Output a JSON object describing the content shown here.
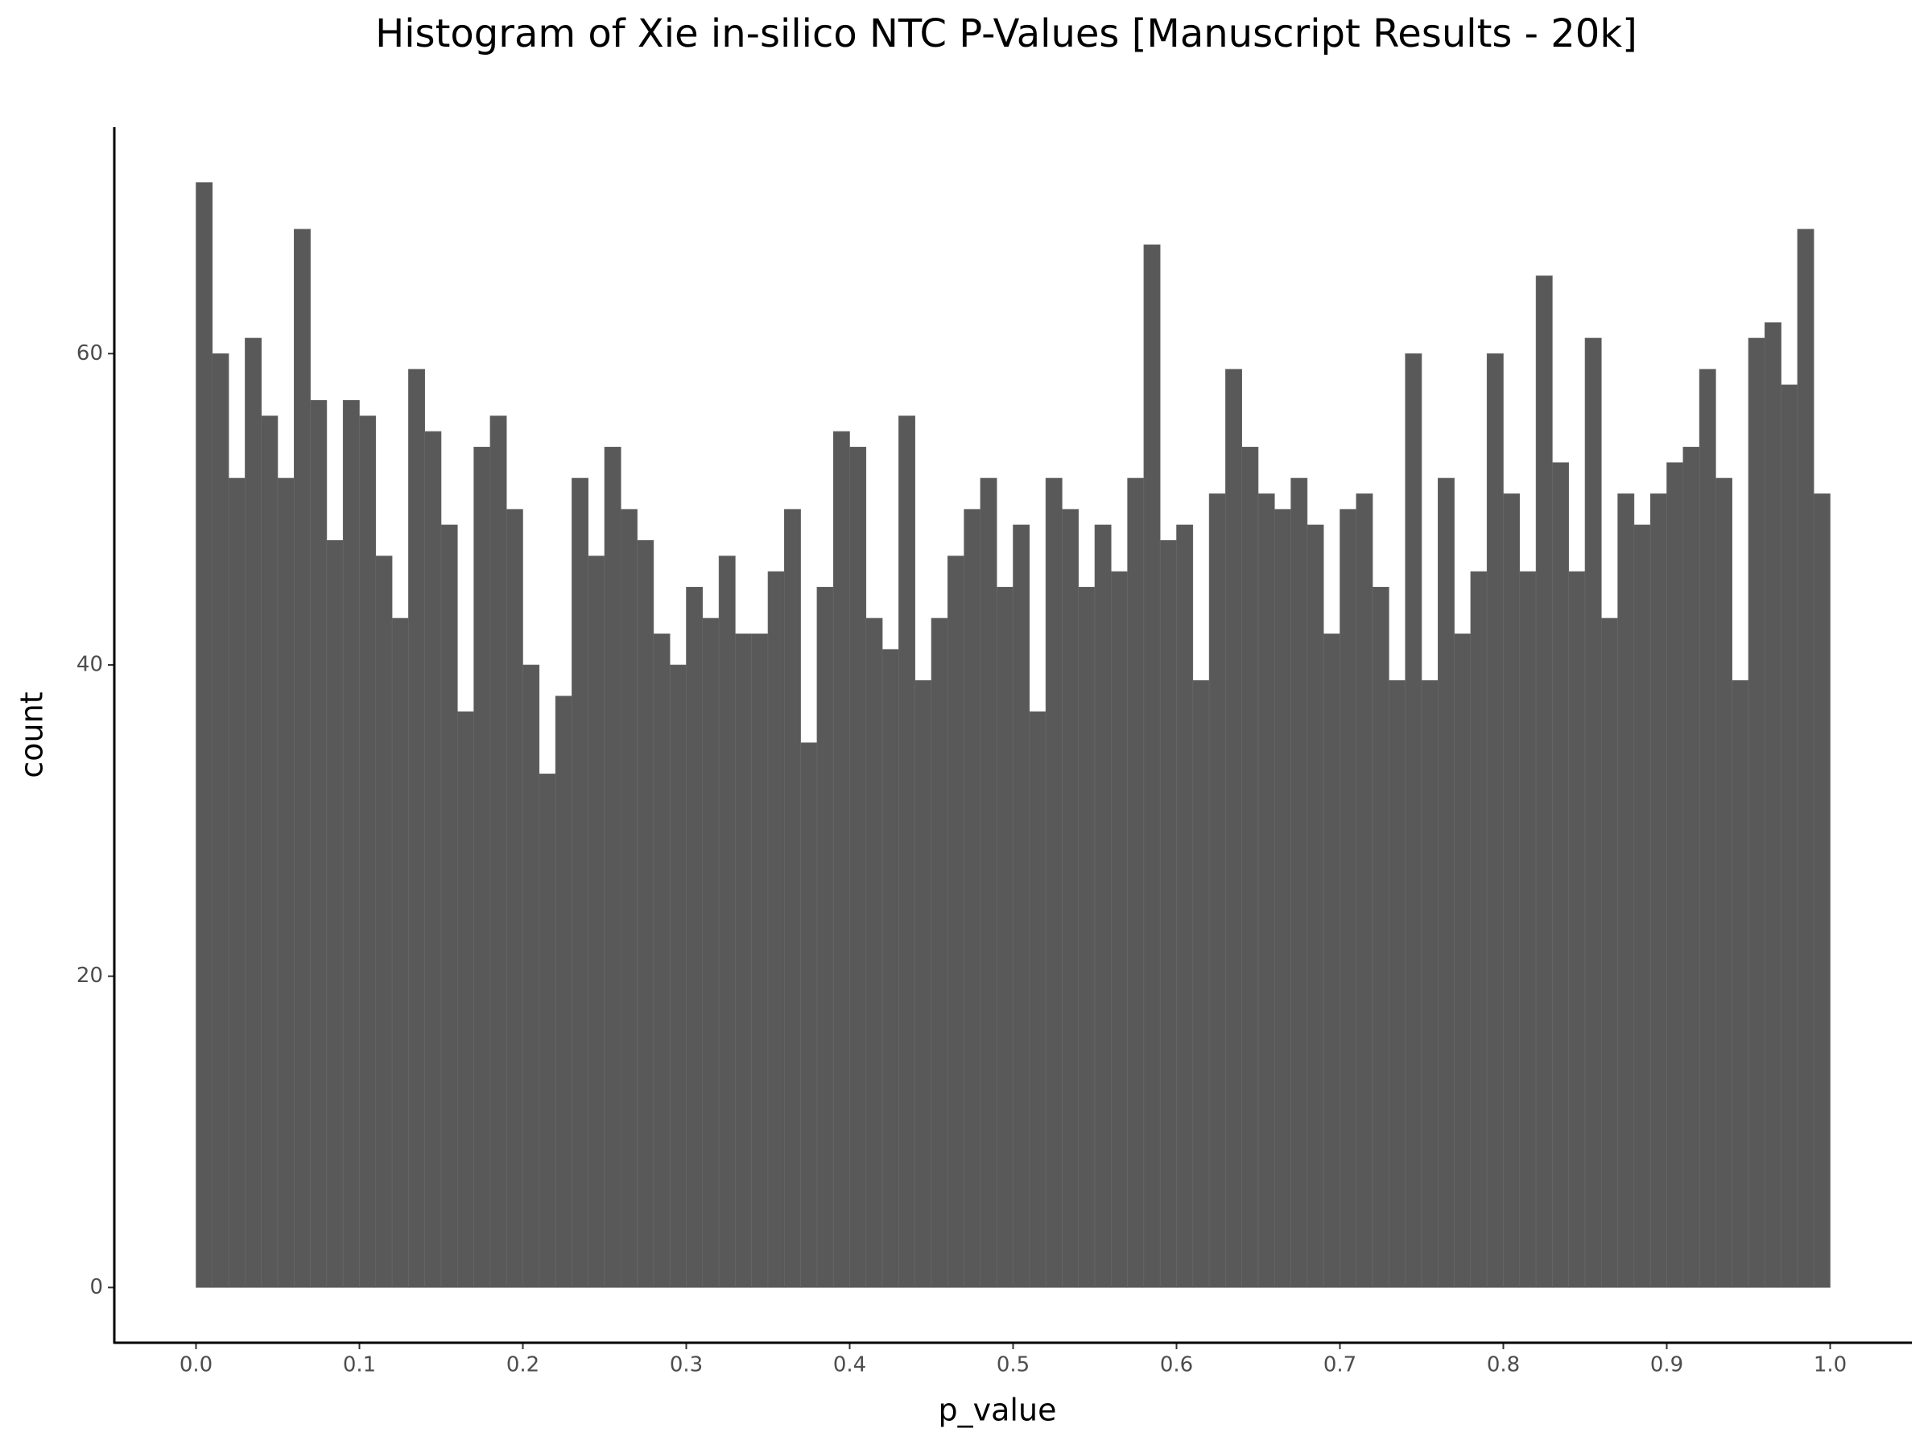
{
  "chart_data": {
    "type": "histogram",
    "title": "Histogram of Xie in-silico NTC P-Values [Manuscript Results - 20k]",
    "x_label": "p_value",
    "y_label": "count",
    "bins": [
      0,
      0.01,
      0.02,
      0.03,
      0.04,
      0.05,
      0.06,
      0.07,
      0.08,
      0.09,
      0.1,
      0.11,
      0.12,
      0.13,
      0.14,
      0.15,
      0.16,
      0.17,
      0.18,
      0.19,
      0.2,
      0.21,
      0.22,
      0.23,
      0.24,
      0.25,
      0.26,
      0.27,
      0.28,
      0.29,
      0.3,
      0.31,
      0.32,
      0.33,
      0.34,
      0.35,
      0.36,
      0.37,
      0.38,
      0.39,
      0.4,
      0.41,
      0.42,
      0.43,
      0.44,
      0.45,
      0.46,
      0.47,
      0.48,
      0.49,
      0.5,
      0.51,
      0.52,
      0.53,
      0.54,
      0.55,
      0.56,
      0.57,
      0.58,
      0.59,
      0.6,
      0.61,
      0.62,
      0.63,
      0.64,
      0.65,
      0.66,
      0.67,
      0.68,
      0.69,
      0.7,
      0.71,
      0.72,
      0.73,
      0.74,
      0.75,
      0.76,
      0.77,
      0.78,
      0.79,
      0.8,
      0.81,
      0.82,
      0.83,
      0.84,
      0.85,
      0.86,
      0.87,
      0.88,
      0.89,
      0.9,
      0.91,
      0.92,
      0.93,
      0.94,
      0.95,
      0.96,
      0.97,
      0.98,
      0.99,
      1
    ],
    "counts": [
      71,
      60,
      52,
      61,
      56,
      52,
      68,
      57,
      48,
      57,
      56,
      47,
      43,
      59,
      55,
      49,
      37,
      54,
      56,
      50,
      40,
      33,
      38,
      52,
      47,
      54,
      50,
      48,
      42,
      40,
      45,
      43,
      47,
      42,
      42,
      46,
      50,
      35,
      45,
      55,
      54,
      43,
      41,
      56,
      39,
      43,
      47,
      50,
      52,
      45,
      49,
      37,
      52,
      50,
      45,
      49,
      46,
      52,
      67,
      48,
      49,
      39,
      51,
      59,
      54,
      51,
      50,
      52,
      49,
      42,
      50,
      51,
      45,
      39,
      60,
      39,
      52,
      42,
      46,
      60,
      51,
      46,
      65,
      53,
      46,
      61,
      43,
      51,
      49,
      51,
      53,
      54,
      59,
      52,
      39,
      61,
      62,
      58,
      68,
      51
    ],
    "color": "#595959",
    "xlim": [
      -0.05,
      1.05
    ],
    "xticks": [
      {
        "value": 0,
        "label": "0.0"
      },
      0.1,
      0.2,
      0.3,
      0.4,
      0.5,
      0.6,
      0.7,
      0.8,
      0.9,
      {
        "value": 1,
        "label": "1.0"
      }
    ],
    "ylim": [
      -3.55,
      74.55
    ],
    "yticks": [
      0,
      20,
      40,
      60
    ],
    "grid": false
  }
}
